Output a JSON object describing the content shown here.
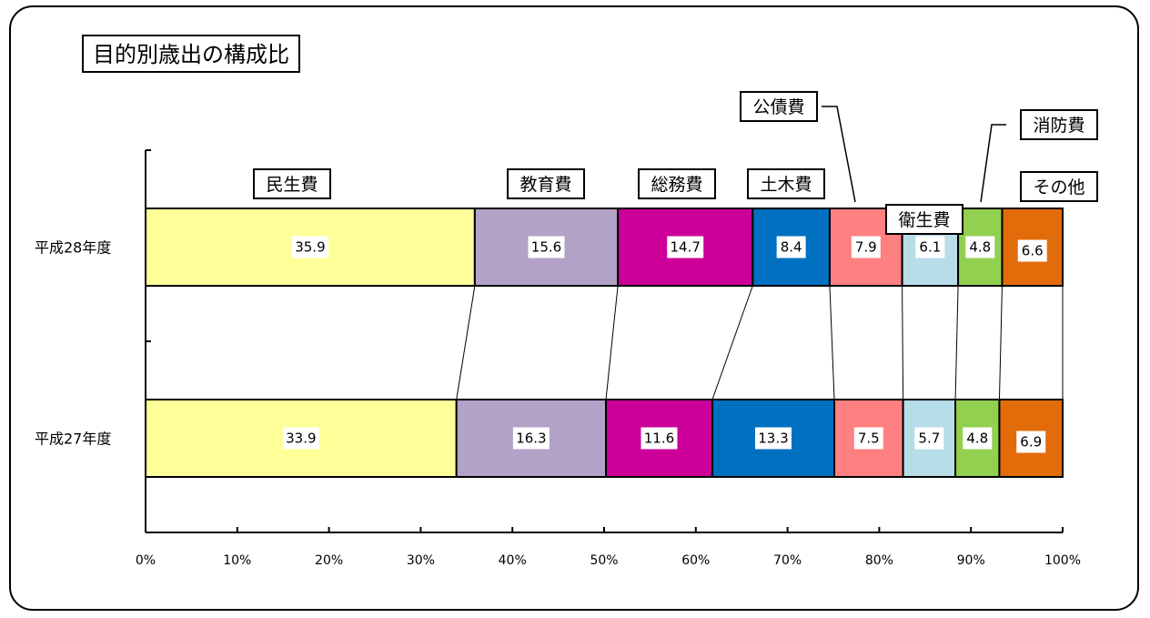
{
  "chart_data": {
    "type": "bar",
    "stacked": true,
    "orientation": "horizontal",
    "title": "目的別歳出の構成比",
    "categories": [
      "平成28年度",
      "平成27年度"
    ],
    "series": [
      {
        "name": "民生費",
        "color": "#FFFF99",
        "values": [
          35.9,
          33.9
        ]
      },
      {
        "name": "教育費",
        "color": "#B3A2C7",
        "values": [
          15.6,
          16.3
        ]
      },
      {
        "name": "総務費",
        "color": "#CC0099",
        "values": [
          14.7,
          11.6
        ]
      },
      {
        "name": "土木費",
        "color": "#0070C0",
        "values": [
          8.4,
          13.3
        ]
      },
      {
        "name": "公債費",
        "color": "#FF8080",
        "values": [
          7.9,
          7.5
        ]
      },
      {
        "name": "衛生費",
        "color": "#B7DDE8",
        "values": [
          6.1,
          5.7
        ]
      },
      {
        "name": "消防費",
        "color": "#92D050",
        "values": [
          4.8,
          4.8
        ]
      },
      {
        "name": "その他",
        "color": "#E36C0A",
        "values": [
          6.6,
          6.9
        ]
      }
    ],
    "xlim": [
      0,
      100
    ],
    "x_ticks": [
      "0%",
      "10%",
      "20%",
      "30%",
      "40%",
      "50%",
      "60%",
      "70%",
      "80%",
      "90%",
      "100%"
    ],
    "grid": false,
    "series_lines": true
  }
}
